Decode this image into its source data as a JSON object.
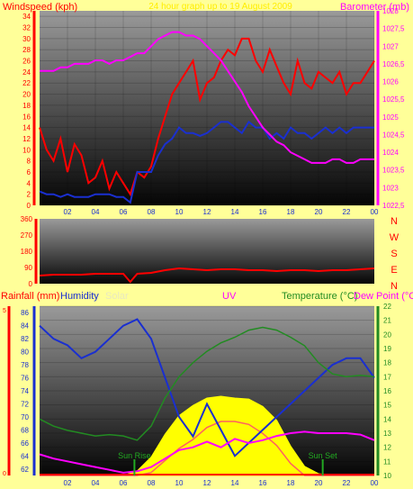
{
  "colors": {
    "background": "#ffff99",
    "wind_speed": "#ff0000",
    "wind_avg": "#1a2fd0",
    "barometer": "#ff00ff",
    "wind_dir": "#ff0000",
    "humidity": "#1a2fd0",
    "temperature": "#228b22",
    "dewpoint": "#ff00ff",
    "solar": "#ffff00",
    "uv": "#ff6060",
    "rain": "#ff0000",
    "sun_marker": "#22aa22"
  },
  "chart_data": [
    {
      "type": "line",
      "title": "24 hour graph up to 19 August 2009",
      "ylabel_left": "Windspeed (kph)",
      "ylabel_right": "Barometer (mb)",
      "x_ticks": [
        "02",
        "04",
        "06",
        "08",
        "10",
        "12",
        "14",
        "16",
        "18",
        "20",
        "22",
        "00"
      ],
      "y_left_ticks": [
        "0",
        "2",
        "4",
        "6",
        "8",
        "10",
        "12",
        "14",
        "16",
        "18",
        "20",
        "22",
        "24",
        "26",
        "28",
        "30",
        "32",
        "34"
      ],
      "y_right_ticks": [
        "1022,5",
        "1023",
        "1023,5",
        "1024",
        "1024,5",
        "1025",
        "1025,5",
        "1026",
        "1026,5",
        "1027",
        "1027,5",
        "1028"
      ],
      "ylim_left": [
        0,
        35
      ],
      "ylim_right": [
        1022.5,
        1028
      ],
      "x_hours": [
        0,
        0.5,
        1,
        1.5,
        2,
        2.5,
        3,
        3.5,
        4,
        4.5,
        5,
        5.5,
        6,
        6.5,
        7,
        7.5,
        8,
        8.5,
        9,
        9.5,
        10,
        10.5,
        11,
        11.5,
        12,
        12.5,
        13,
        13.5,
        14,
        14.5,
        15,
        15.5,
        16,
        16.5,
        17,
        17.5,
        18,
        18.5,
        19,
        19.5,
        20,
        20.5,
        21,
        21.5,
        22,
        22.5,
        23,
        23.5,
        24
      ],
      "series": [
        {
          "name": "Gust",
          "values": [
            14,
            10,
            8,
            12,
            6,
            11,
            9,
            4,
            5,
            8,
            3,
            6,
            4,
            2,
            6,
            5,
            7,
            12,
            16,
            20,
            22,
            24,
            26,
            19,
            22,
            23,
            26,
            28,
            27,
            30,
            30,
            26,
            24,
            28,
            25,
            22,
            20,
            26,
            22,
            21,
            24,
            23,
            22,
            24,
            20,
            22,
            22,
            24,
            26
          ]
        },
        {
          "name": "Average",
          "values": [
            2.5,
            2,
            2,
            1.5,
            2,
            1.5,
            1.5,
            1.5,
            2,
            2,
            2,
            1.5,
            1.5,
            0.5,
            6,
            6,
            6,
            9,
            11,
            12,
            14,
            13,
            13,
            12.5,
            13,
            14,
            15,
            15,
            14,
            13,
            15,
            14,
            14,
            12,
            13,
            12,
            14,
            13,
            13,
            12,
            13,
            14,
            13,
            14,
            13,
            14,
            14,
            14,
            14
          ]
        },
        {
          "name": "Barometer",
          "values": [
            1026.3,
            1026.3,
            1026.3,
            1026.4,
            1026.4,
            1026.5,
            1026.5,
            1026.5,
            1026.6,
            1026.6,
            1026.5,
            1026.6,
            1026.6,
            1026.7,
            1026.8,
            1026.8,
            1027,
            1027.2,
            1027.3,
            1027.4,
            1027.4,
            1027.3,
            1027.3,
            1027.2,
            1027,
            1026.8,
            1026.6,
            1026.3,
            1026,
            1025.7,
            1025.3,
            1025,
            1024.7,
            1024.5,
            1024.3,
            1024.2,
            1024,
            1023.9,
            1023.8,
            1023.7,
            1023.7,
            1023.7,
            1023.8,
            1023.8,
            1023.7,
            1023.7,
            1023.8,
            1023.8,
            1023.8
          ]
        }
      ]
    },
    {
      "type": "line",
      "ylabel_left": "",
      "compass_labels": [
        "N",
        "W",
        "S",
        "E",
        "N"
      ],
      "y_left_ticks": [
        "0",
        "90",
        "180",
        "270",
        "360"
      ],
      "ylim": [
        0,
        360
      ],
      "x_hours": [
        0,
        1,
        2,
        3,
        4,
        5,
        6,
        6.5,
        7,
        8,
        9,
        10,
        11,
        12,
        13,
        14,
        15,
        16,
        17,
        18,
        19,
        20,
        21,
        22,
        23,
        24
      ],
      "series": [
        {
          "name": "Wind direction",
          "values": [
            45,
            50,
            50,
            50,
            55,
            55,
            55,
            10,
            55,
            60,
            75,
            85,
            80,
            75,
            80,
            80,
            75,
            75,
            70,
            75,
            75,
            70,
            75,
            75,
            80,
            85
          ]
        }
      ]
    },
    {
      "type": "line",
      "labels": {
        "rainfall": "Rainfall (mm)",
        "humidity": "Humidity",
        "solar": "Solar",
        "uv": "UV",
        "temperature": "Temperature (°C)",
        "dewpoint": "Dew Point (°C)"
      },
      "annotations": [
        "Sun Rise",
        "Sun Set"
      ],
      "x_ticks": [
        "02",
        "04",
        "06",
        "08",
        "10",
        "12",
        "14",
        "16",
        "18",
        "20",
        "22",
        "00"
      ],
      "y_rain_ticks": [
        "0",
        "5"
      ],
      "y_humidity_ticks": [
        "62",
        "64",
        "66",
        "68",
        "70",
        "72",
        "74",
        "76",
        "78",
        "80",
        "82",
        "84",
        "86"
      ],
      "y_temp_ticks": [
        "10",
        "11",
        "12",
        "13",
        "14",
        "15",
        "16",
        "17",
        "18",
        "19",
        "20",
        "21",
        "22"
      ],
      "ylim_rain": [
        0,
        5
      ],
      "ylim_humidity": [
        61,
        87
      ],
      "ylim_temp": [
        10,
        22
      ],
      "sunrise_hour": 6.8,
      "sunset_hour": 20.3,
      "x_hours": [
        0,
        1,
        2,
        3,
        4,
        5,
        6,
        7,
        8,
        9,
        10,
        11,
        12,
        13,
        14,
        15,
        16,
        17,
        18,
        19,
        20,
        21,
        22,
        23,
        24
      ],
      "series": [
        {
          "name": "Humidity",
          "values": [
            84,
            82,
            81,
            79,
            80,
            82,
            84,
            85,
            82,
            76,
            70,
            67,
            72,
            68,
            64,
            66,
            68,
            70,
            72,
            74,
            76,
            78,
            79,
            79,
            76
          ]
        },
        {
          "name": "Temperature",
          "values": [
            14,
            13.5,
            13.2,
            13.0,
            12.8,
            12.9,
            12.8,
            12.5,
            13.5,
            15.5,
            17,
            18,
            18.8,
            19.4,
            19.8,
            20.3,
            20.5,
            20.3,
            19.8,
            19.2,
            18.0,
            17.2,
            17.0,
            17.1,
            17.0
          ]
        },
        {
          "name": "Dew Point",
          "values": [
            11.5,
            11.2,
            11.0,
            10.8,
            10.6,
            10.4,
            10.2,
            10.3,
            10.6,
            11.2,
            11.8,
            12.0,
            12.4,
            12.0,
            12.6,
            12.3,
            12.5,
            12.8,
            13.0,
            13.1,
            13.0,
            13.0,
            13.0,
            12.9,
            12.5
          ]
        },
        {
          "name": "Solar",
          "values": [
            0,
            0,
            0,
            0,
            0,
            0,
            0,
            0.5,
            2.0,
            4.5,
            6.5,
            7.6,
            8.4,
            8.6,
            8.4,
            8.3,
            7.5,
            6.0,
            3.2,
            1.0,
            0.2,
            0,
            0,
            0,
            0
          ]
        },
        {
          "name": "UV",
          "values": [
            0,
            0,
            0,
            0,
            0,
            0,
            0,
            0,
            0.1,
            0.5,
            0.9,
            1.2,
            1.6,
            1.8,
            1.8,
            1.7,
            1.4,
            1.0,
            0.4,
            0,
            0,
            0,
            0,
            0,
            0
          ]
        },
        {
          "name": "Rainfall",
          "values": [
            0,
            0,
            0,
            0,
            0,
            0,
            0,
            0,
            0,
            0,
            0,
            0,
            0,
            0,
            0,
            0,
            0,
            0,
            0,
            0,
            0,
            0,
            0,
            0,
            0
          ]
        }
      ]
    }
  ]
}
